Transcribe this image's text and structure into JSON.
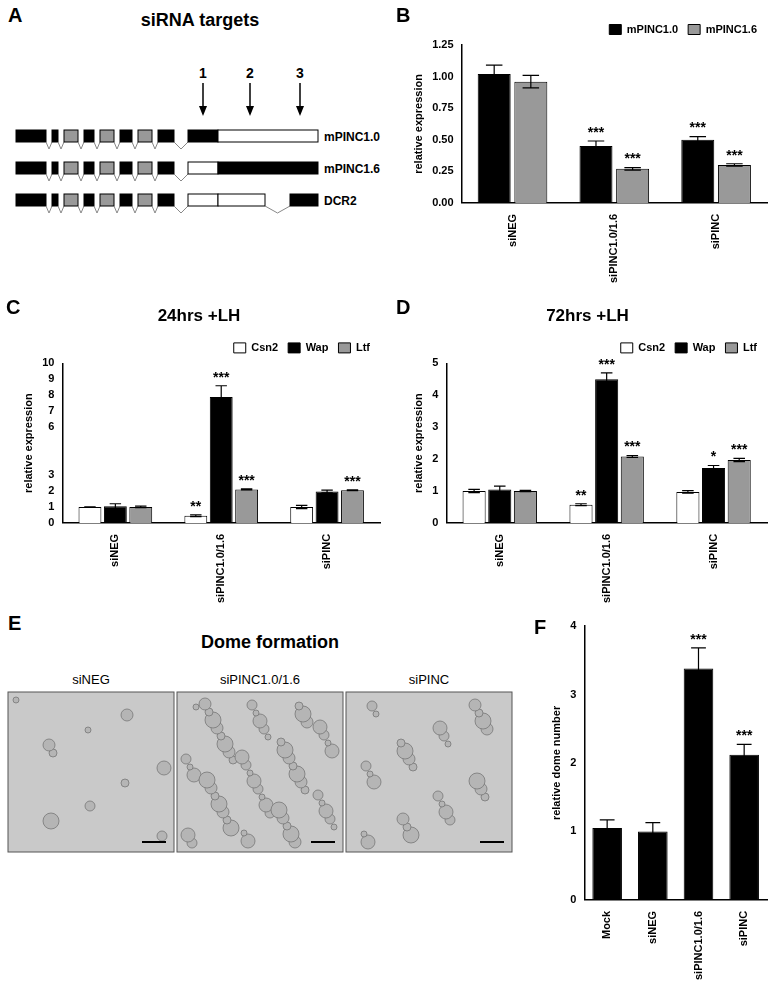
{
  "diagram": {
    "panel": "A",
    "title": "siRNA targets",
    "arrows": [
      "1",
      "2",
      "3"
    ],
    "transcripts": [
      "mPINC1.0",
      "mPINC1.6",
      "DCR2"
    ]
  },
  "images": {
    "panel": "E",
    "title": "Dome formation",
    "labels": [
      "siNEG",
      "siPINC1.0/1.6",
      "siPINC"
    ]
  },
  "chart_data": [
    {
      "panel": "B",
      "type": "bar",
      "categories": [
        "siNEG",
        "siPINC1.0/1.6",
        "siPINC"
      ],
      "series": [
        {
          "name": "mPINC1.0",
          "color": "#000000",
          "values": [
            1.02,
            0.45,
            0.5
          ],
          "error": [
            0.07,
            0.04,
            0.025
          ],
          "annotations": [
            null,
            "***",
            "***"
          ]
        },
        {
          "name": "mPINC1.6",
          "color": "#999999",
          "values": [
            0.96,
            0.27,
            0.3
          ],
          "error": [
            0.05,
            0.01,
            0.01
          ],
          "annotations": [
            null,
            "***",
            "***"
          ]
        }
      ],
      "ylabel": "relative expression",
      "ylim": [
        0,
        1.25
      ],
      "yticks": [
        {
          "value": 0,
          "label": "0.00"
        },
        {
          "value": 0.25,
          "label": "0.25"
        },
        {
          "value": 0.5,
          "label": "0.50"
        },
        {
          "value": 0.75,
          "label": "0.75"
        },
        {
          "value": 1,
          "label": "1.00"
        },
        {
          "value": 1.25,
          "label": "1.25"
        }
      ],
      "legend": "upper right",
      "grid": false
    },
    {
      "panel": "C",
      "type": "bar",
      "title": "24hrs +LH",
      "categories": [
        "siNEG",
        "siPINC1.0/1.6",
        "siPINC"
      ],
      "series": [
        {
          "name": "Csn2",
          "color": "#ffffff",
          "values": [
            1.0,
            0.45,
            1.0
          ],
          "error": [
            0.01,
            0.05,
            0.1
          ],
          "annotations": [
            null,
            "**",
            null
          ]
        },
        {
          "name": "Wap",
          "color": "#000000",
          "values": [
            1.05,
            7.9,
            1.97
          ],
          "error": [
            0.15,
            0.7,
            0.08
          ],
          "annotations": [
            null,
            "***",
            null
          ]
        },
        {
          "name": "Ltf",
          "color": "#999999",
          "values": [
            1.0,
            2.1,
            2.05
          ],
          "error": [
            0.05,
            0.03,
            0.03
          ],
          "annotations": [
            null,
            "***",
            "***"
          ]
        }
      ],
      "ylabel": "relative expression",
      "ylim": [
        0,
        10
      ],
      "yticks": [
        0,
        1,
        2,
        3,
        6,
        7,
        8,
        9,
        10
      ],
      "legend": "upper right",
      "grid": false
    },
    {
      "panel": "D",
      "type": "bar",
      "title": "72hrs +LH",
      "categories": [
        "siNEG",
        "siPINC1.0/1.6",
        "siPINC"
      ],
      "series": [
        {
          "name": "Csn2",
          "color": "#ffffff",
          "values": [
            1.0,
            0.57,
            0.97
          ],
          "error": [
            0.05,
            0.03,
            0.04
          ],
          "annotations": [
            null,
            "**",
            null
          ]
        },
        {
          "name": "Wap",
          "color": "#000000",
          "values": [
            1.05,
            4.5,
            1.72
          ],
          "error": [
            0.1,
            0.2,
            0.08
          ],
          "annotations": [
            null,
            "***",
            "*"
          ]
        },
        {
          "name": "Ltf",
          "color": "#999999",
          "values": [
            1.0,
            2.08,
            1.97
          ],
          "error": [
            0.02,
            0.03,
            0.05
          ],
          "annotations": [
            null,
            "***",
            "***"
          ]
        }
      ],
      "ylabel": "relative expression",
      "ylim": [
        0,
        5
      ],
      "yticks": [
        0,
        1,
        2,
        3,
        4,
        5
      ],
      "legend": "upper right",
      "grid": false
    },
    {
      "panel": "F",
      "type": "bar",
      "categories": [
        "Mock",
        "siNEG",
        "siPINC1.0/1.6",
        "siPINC"
      ],
      "values": [
        1.05,
        1.0,
        3.38,
        2.12
      ],
      "error": [
        0.12,
        0.13,
        0.3,
        0.15
      ],
      "annotations": [
        null,
        null,
        "***",
        "***"
      ],
      "color": "#000000",
      "ylabel": "relative dome number",
      "ylim": [
        0,
        4
      ],
      "yticks": [
        0,
        1,
        2,
        3,
        4
      ],
      "grid": false
    }
  ]
}
